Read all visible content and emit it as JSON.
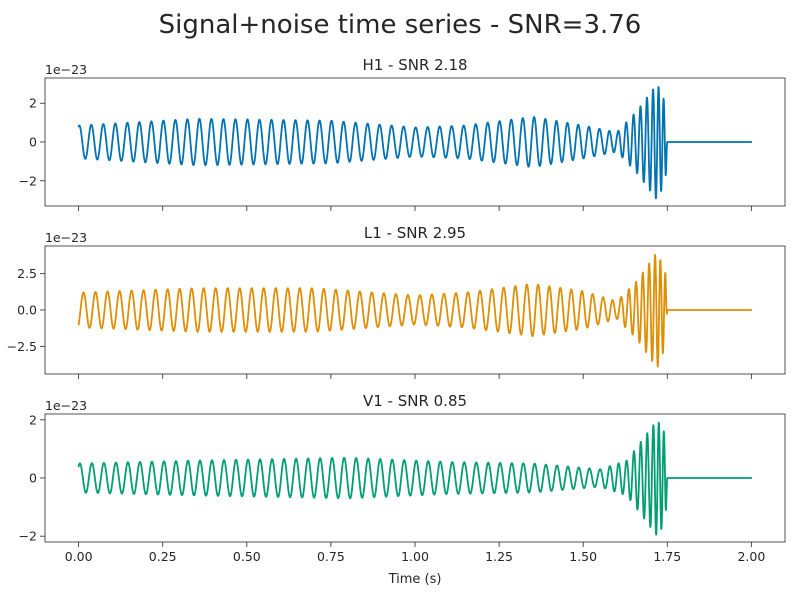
{
  "chart_data": {
    "type": "line",
    "title": "Signal+noise time series - SNR=3.76",
    "xlabel": "Time (s)",
    "xlim": [
      -0.1,
      2.1
    ],
    "xticks": [
      0.0,
      0.25,
      0.5,
      0.75,
      1.0,
      1.25,
      1.5,
      1.75,
      2.0
    ],
    "xtick_labels": [
      "0.00",
      "0.25",
      "0.50",
      "0.75",
      "1.00",
      "1.25",
      "1.50",
      "1.75",
      "2.00"
    ],
    "grid": false,
    "panels": [
      {
        "title": "H1 - SNR 2.18",
        "color": "#0173b2",
        "offset_label": "1e−23",
        "ylim": [
          -3.3,
          3.3
        ],
        "yticks": [
          -2,
          0,
          2
        ],
        "ytick_labels": [
          "−2",
          "0",
          "2"
        ],
        "series": {
          "x_range": [
            0.0,
            2.0
          ],
          "start_value": 0.8,
          "merger_time": 1.74,
          "frequency_hz": [
            [
              0.0,
              28
            ],
            [
              1.2,
              28
            ],
            [
              1.55,
              32
            ],
            [
              1.7,
              55
            ],
            [
              1.74,
              70
            ]
          ],
          "envelope": [
            [
              0.0,
              0.85
            ],
            [
              0.35,
              1.2
            ],
            [
              0.75,
              1.1
            ],
            [
              1.0,
              0.75
            ],
            [
              1.15,
              0.85
            ],
            [
              1.35,
              1.3
            ],
            [
              1.5,
              0.85
            ],
            [
              1.6,
              0.5
            ],
            [
              1.66,
              1.6
            ],
            [
              1.72,
              3.0
            ],
            [
              1.745,
              2.0
            ],
            [
              1.75,
              0.0
            ]
          ],
          "post_merger_value": 0.0
        }
      },
      {
        "title": "L1 - SNR 2.95",
        "color": "#de8f05",
        "offset_label": "1e−23",
        "ylim": [
          -4.4,
          4.4
        ],
        "yticks": [
          -2.5,
          0,
          2.5
        ],
        "ytick_labels": [
          "−2.5",
          "0.0",
          "2.5"
        ],
        "series": {
          "x_range": [
            0.0,
            2.0
          ],
          "start_value": -1.0,
          "merger_time": 1.74,
          "frequency_hz": [
            [
              0.0,
              28
            ],
            [
              1.2,
              28
            ],
            [
              1.55,
              32
            ],
            [
              1.7,
              55
            ],
            [
              1.74,
              70
            ]
          ],
          "envelope": [
            [
              0.0,
              1.2
            ],
            [
              0.35,
              1.5
            ],
            [
              0.7,
              1.5
            ],
            [
              1.0,
              1.0
            ],
            [
              1.15,
              1.2
            ],
            [
              1.35,
              1.8
            ],
            [
              1.5,
              1.3
            ],
            [
              1.6,
              0.6
            ],
            [
              1.66,
              2.0
            ],
            [
              1.72,
              4.0
            ],
            [
              1.745,
              2.5
            ],
            [
              1.75,
              0.0
            ]
          ],
          "post_merger_value": 0.0
        }
      },
      {
        "title": "V1 - SNR 0.85",
        "color": "#029e73",
        "offset_label": "1e−23",
        "ylim": [
          -2.2,
          2.2
        ],
        "yticks": [
          -2,
          0,
          2
        ],
        "ytick_labels": [
          "−2",
          "0",
          "2"
        ],
        "series": {
          "x_range": [
            0.0,
            2.0
          ],
          "start_value": 0.4,
          "merger_time": 1.74,
          "frequency_hz": [
            [
              0.0,
              28
            ],
            [
              1.2,
              28
            ],
            [
              1.55,
              32
            ],
            [
              1.7,
              55
            ],
            [
              1.74,
              70
            ]
          ],
          "envelope": [
            [
              0.0,
              0.5
            ],
            [
              0.35,
              0.6
            ],
            [
              0.8,
              0.7
            ],
            [
              1.1,
              0.55
            ],
            [
              1.35,
              0.5
            ],
            [
              1.55,
              0.3
            ],
            [
              1.63,
              0.6
            ],
            [
              1.72,
              2.0
            ],
            [
              1.745,
              1.5
            ],
            [
              1.75,
              0.0
            ]
          ],
          "post_merger_value": 0.0
        }
      }
    ]
  }
}
